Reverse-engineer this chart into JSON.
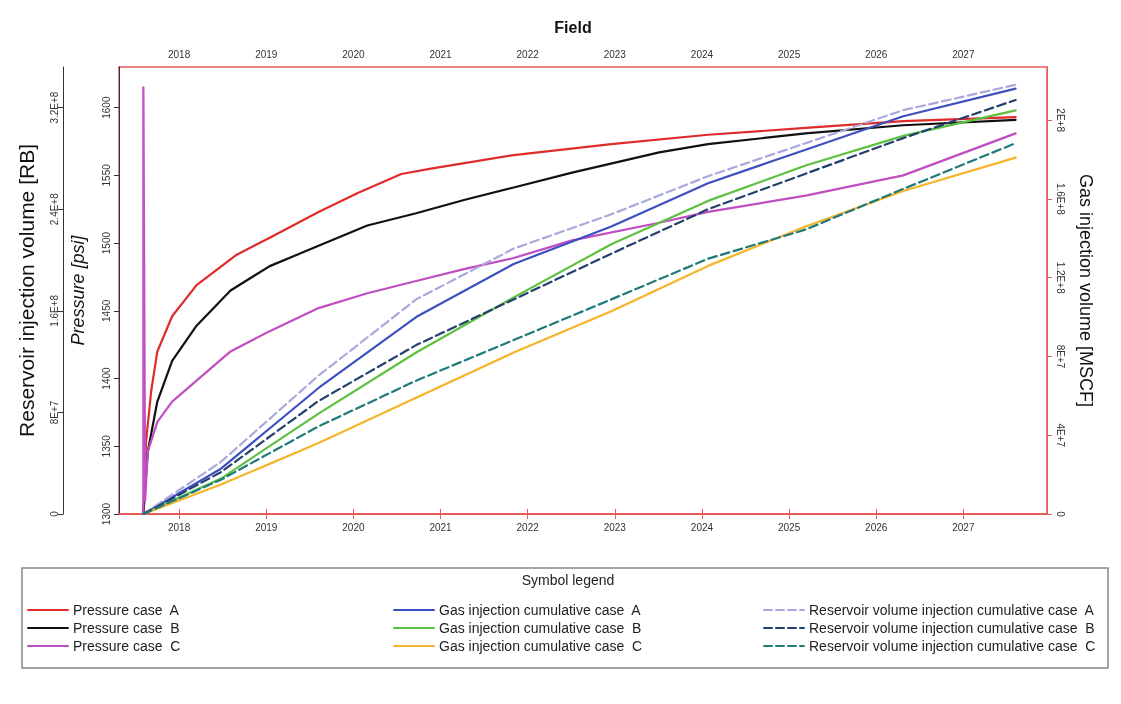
{
  "chart_data": {
    "type": "line",
    "title": "Field",
    "ylabel": "Pressure [psi]",
    "y2label": "Gas injection volume [MSCF]",
    "y3label": "Reservoir injection volume [RB]",
    "legend_title": "Symbol legend",
    "legend": "bottom",
    "marker": "none",
    "xlim": [
      2017.31,
      2027.96
    ],
    "xticks": [
      2018,
      2019,
      2020,
      2021,
      2022,
      2023,
      2024,
      2025,
      2026,
      2027
    ],
    "x2lim": [
      2017.31,
      2027.96
    ],
    "x2ticks": [
      2018,
      2019,
      2020,
      2021,
      2022,
      2023,
      2024,
      2025,
      2026,
      2027
    ],
    "ylim": [
      1300,
      1630
    ],
    "yticks": [
      1300,
      1350,
      1400,
      1450,
      1500,
      1550,
      1600
    ],
    "y2lim": [
      0,
      227000000
    ],
    "y2ticks": [
      0,
      {
        "value": 40000000,
        "label": "4E+7"
      },
      {
        "value": 80000000,
        "label": "8E+7"
      },
      {
        "value": 120000000,
        "label": "1.2E+8"
      },
      {
        "value": 160000000,
        "label": "1.6E+8"
      },
      {
        "value": 200000000,
        "label": "2E+8"
      }
    ],
    "y3lim": [
      0,
      352000000
    ],
    "y3ticks": [
      0,
      {
        "value": 80000000,
        "label": "8E+7"
      },
      {
        "value": 160000000,
        "label": "1.6E+8"
      },
      {
        "value": 240000000,
        "label": "2.4E+8"
      },
      {
        "value": 320000000,
        "label": "3.2E+8"
      }
    ],
    "series": [
      {
        "name": "Pressure case  A",
        "color": "#e02b2b",
        "line_style": "solid",
        "x": [
          2017.59,
          2017.62,
          2017.68,
          2017.75,
          2017.92,
          2018.2,
          2018.65,
          2019.04,
          2019.6,
          2020.05,
          2020.55,
          2020.89,
          2021.84,
          2022.96,
          2024.07,
          2025.19,
          2026.31,
          2027.6
        ],
        "values": [
          1300,
          1353,
          1391,
          1420,
          1446,
          1469,
          1491,
          1504,
          1523,
          1537,
          1551,
          1555,
          1565,
          1573,
          1580,
          1585,
          1590,
          1593
        ]
      },
      {
        "name": "Pressure case  B",
        "color": "#111111",
        "line_style": "solid",
        "x": [
          2017.59,
          2017.64,
          2017.75,
          2017.92,
          2018.2,
          2018.59,
          2019.04,
          2019.6,
          2020.16,
          2020.72,
          2021.28,
          2021.84,
          2022.51,
          2023.51,
          2024.07,
          2025.19,
          2026.31,
          2027.6
        ],
        "values": [
          1300,
          1346,
          1383,
          1413,
          1439,
          1465,
          1483,
          1498,
          1513,
          1522,
          1532,
          1541,
          1552,
          1567,
          1573,
          1581,
          1587,
          1591
        ]
      },
      {
        "name": "Pressure case  C",
        "color": "#c04ec0",
        "line_style": "solid",
        "x": [
          2017.59,
          2017.59,
          2017.61,
          2017.64,
          2017.75,
          2017.92,
          2018.59,
          2019.04,
          2019.6,
          2020.16,
          2020.72,
          2021.28,
          2021.84,
          2022.51,
          2023.51,
          2024.07,
          2025.19,
          2026.31,
          2027.6
        ],
        "values": [
          1300,
          1615,
          1310,
          1346,
          1368,
          1383,
          1420,
          1435,
          1452,
          1463,
          1472,
          1481,
          1489,
          1502,
          1515,
          1523,
          1535,
          1550,
          1581
        ]
      },
      {
        "name": "Gas injection cumulative case  A",
        "color": "#3f4fbf",
        "line_style": "solid",
        "axis": "y2",
        "x": [
          2017.59,
          2018.48,
          2019.6,
          2020.72,
          2021.84,
          2022.96,
          2024.07,
          2025.19,
          2026.31,
          2027.6
        ],
        "values": [
          0,
          23000000,
          64000000,
          100000000,
          127000000,
          146000000,
          168000000,
          185000000,
          202000000,
          216000000
        ]
      },
      {
        "name": "Gas injection cumulative case  B",
        "color": "#5cc040",
        "line_style": "solid",
        "axis": "y2",
        "x": [
          2017.59,
          2018.48,
          2019.6,
          2020.72,
          2021.84,
          2022.96,
          2024.07,
          2025.19,
          2026.31,
          2027.6
        ],
        "values": [
          0,
          18000000,
          51000000,
          82000000,
          110000000,
          137000000,
          159000000,
          177000000,
          192000000,
          205000000
        ]
      },
      {
        "name": "Gas injection cumulative case  C",
        "color": "#f5b42a",
        "line_style": "solid",
        "axis": "y2",
        "x": [
          2017.59,
          2018.48,
          2019.6,
          2020.72,
          2021.84,
          2022.96,
          2024.07,
          2025.19,
          2026.31,
          2027.6
        ],
        "values": [
          0,
          15000000,
          36000000,
          59000000,
          82000000,
          103000000,
          126000000,
          146000000,
          164000000,
          181000000
        ]
      },
      {
        "name": "Reservoir volume injection cumulative case  A",
        "color": "#a9a9dc",
        "line_style": "dashed",
        "axis": "y3",
        "x": [
          2017.59,
          2018.48,
          2019.6,
          2020.72,
          2021.84,
          2022.96,
          2024.07,
          2025.19,
          2026.31,
          2027.6
        ],
        "values": [
          0,
          41000000,
          109000000,
          169000000,
          209000000,
          236000000,
          266000000,
          292000000,
          318000000,
          338000000
        ]
      },
      {
        "name": "Reservoir volume injection cumulative case  B",
        "color": "#24406e",
        "line_style": "dashed",
        "axis": "y3",
        "x": [
          2017.59,
          2018.48,
          2019.6,
          2020.72,
          2021.84,
          2022.96,
          2024.07,
          2025.19,
          2026.31,
          2027.6
        ],
        "values": [
          0,
          33000000,
          89000000,
          133000000,
          169000000,
          205000000,
          240000000,
          268000000,
          296000000,
          326000000
        ]
      },
      {
        "name": "Reservoir volume injection cumulative case  C",
        "color": "#1f7a78",
        "line_style": "dashed",
        "axis": "y3",
        "x": [
          2017.59,
          2018.48,
          2019.6,
          2020.72,
          2021.84,
          2022.96,
          2024.07,
          2025.19,
          2026.31,
          2027.6
        ],
        "values": [
          0,
          27000000,
          69000000,
          105000000,
          137000000,
          169000000,
          201000000,
          224000000,
          256000000,
          292000000
        ]
      }
    ]
  }
}
